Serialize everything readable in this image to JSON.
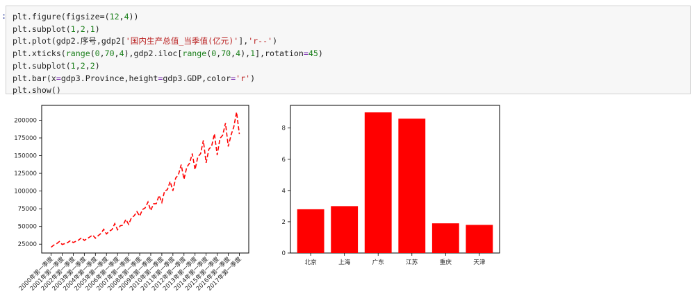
{
  "notebook": {
    "prompt_label": ":",
    "code_lines": [
      [
        {
          "t": "plt.figure(figsize=("
        },
        {
          "t": "12",
          "c": "n"
        },
        {
          "t": ","
        },
        {
          "t": "4",
          "c": "n"
        },
        {
          "t": "))"
        }
      ],
      [
        {
          "t": "plt.subplot("
        },
        {
          "t": "1",
          "c": "n"
        },
        {
          "t": ","
        },
        {
          "t": "2",
          "c": "n"
        },
        {
          "t": ","
        },
        {
          "t": "1",
          "c": "n"
        },
        {
          "t": ")"
        }
      ],
      [
        {
          "t": "plt.plot(gdp2.序号,gdp2["
        },
        {
          "t": "'国内生产总值_当季值(亿元)'",
          "c": "s"
        },
        {
          "t": "],"
        },
        {
          "t": "'r--'",
          "c": "s"
        },
        {
          "t": ")"
        }
      ],
      [
        {
          "t": "plt.xticks("
        },
        {
          "t": "range",
          "c": "n"
        },
        {
          "t": "("
        },
        {
          "t": "0",
          "c": "n"
        },
        {
          "t": ","
        },
        {
          "t": "70",
          "c": "n"
        },
        {
          "t": ","
        },
        {
          "t": "4",
          "c": "n"
        },
        {
          "t": "),gdp2.iloc["
        },
        {
          "t": "range",
          "c": "n"
        },
        {
          "t": "("
        },
        {
          "t": "0",
          "c": "n"
        },
        {
          "t": ","
        },
        {
          "t": "70",
          "c": "n"
        },
        {
          "t": ","
        },
        {
          "t": "4",
          "c": "n"
        },
        {
          "t": "),"
        },
        {
          "t": "1",
          "c": "n"
        },
        {
          "t": "],rotation"
        },
        {
          "t": "=",
          "c": "o"
        },
        {
          "t": "45",
          "c": "n"
        },
        {
          "t": ")"
        }
      ],
      [
        {
          "t": "plt.subplot("
        },
        {
          "t": "1",
          "c": "n"
        },
        {
          "t": ","
        },
        {
          "t": "2",
          "c": "n"
        },
        {
          "t": ","
        },
        {
          "t": "2",
          "c": "n"
        },
        {
          "t": ")"
        }
      ],
      [
        {
          "t": "plt.bar(x"
        },
        {
          "t": "=",
          "c": "o"
        },
        {
          "t": "gdp3.Province,height"
        },
        {
          "t": "=",
          "c": "o"
        },
        {
          "t": "gdp3.GDP,color"
        },
        {
          "t": "=",
          "c": "o"
        },
        {
          "t": "'r'",
          "c": "s"
        },
        {
          "t": ")"
        }
      ],
      [
        {
          "t": "plt.show()"
        }
      ]
    ]
  },
  "chart_data": [
    {
      "type": "line",
      "title": "",
      "xlabel": "",
      "ylabel": "",
      "line_color": "#ff0000",
      "line_style": "dashed",
      "x_tick_labels": [
        "2000年第一季度",
        "2001年第一季度",
        "2002年第一季度",
        "2003年第一季度",
        "2004年第一季度",
        "2005年第一季度",
        "2006年第一季度",
        "2007年第一季度",
        "2008年第一季度",
        "2009年第一季度",
        "2010年第一季度",
        "2011年第一季度",
        "2012年第一季度",
        "2013年第一季度",
        "2014年第一季度",
        "2015年第一季度",
        "2016年第一季度",
        "2017年第一季度"
      ],
      "y_tick_labels": [
        "25000",
        "50000",
        "75000",
        "100000",
        "125000",
        "150000",
        "175000",
        "200000"
      ],
      "y_ticks": [
        25000,
        50000,
        75000,
        100000,
        125000,
        150000,
        175000,
        200000
      ],
      "xlim": [
        -3.4,
        71.4
      ],
      "ylim": [
        12500,
        221000
      ],
      "values": [
        20647,
        23738,
        25688,
        28749,
        24531,
        25870,
        27325,
        30024,
        27312,
        29115,
        30906,
        34063,
        30356,
        32693,
        35197,
        37935,
        33420,
        36985,
        40081,
        46013,
        39425,
        43093,
        45614,
        54003,
        45315,
        51034,
        51744,
        59981,
        52940,
        62073,
        65034,
        70935,
        64560,
        73866,
        76346,
        84530,
        72549,
        81927,
        82213,
        93826,
        84003,
        100092,
        101856,
        113591,
        100359,
        118318,
        123080,
        137225,
        116620,
        133512,
        139209,
        152896,
        130234,
        148225,
        152823,
        171474,
        139855,
        159066,
        163549,
        180925,
        150867,
        174111,
        179113,
        195924,
        162999,
        178920,
        190622,
        211566,
        180683
      ]
    },
    {
      "type": "bar",
      "title": "",
      "xlabel": "",
      "ylabel": "",
      "bar_color": "#ff0000",
      "categories": [
        "北京",
        "上海",
        "广东",
        "江苏",
        "重庆",
        "天津"
      ],
      "values": [
        2.8,
        3.0,
        9.0,
        8.6,
        1.9,
        1.8
      ],
      "y_ticks": [
        0,
        2,
        4,
        6,
        8
      ],
      "y_tick_labels": [
        "0",
        "2",
        "4",
        "6",
        "8"
      ],
      "ylim": [
        0,
        9.45
      ]
    }
  ]
}
